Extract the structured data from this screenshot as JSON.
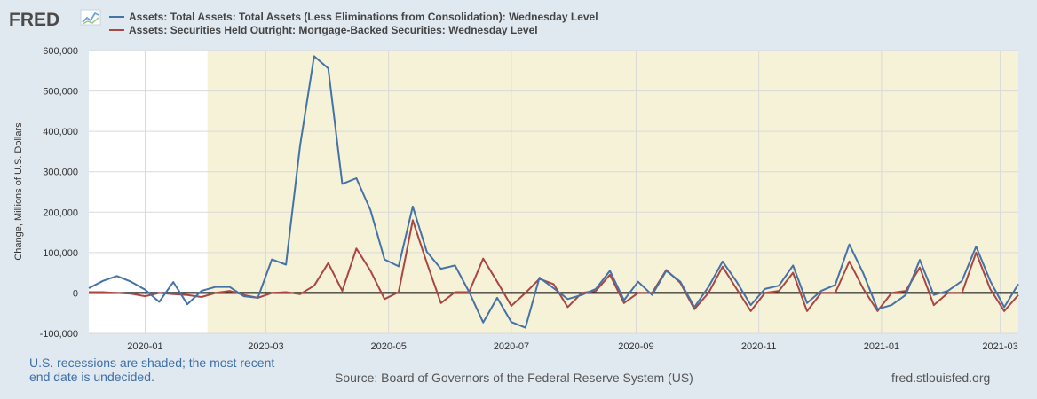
{
  "header": {
    "logo_text": "FRED",
    "logo_icon": "fred-chart-icon"
  },
  "chart_data": {
    "type": "line",
    "ylabel": "Change, Millions of U.S. Dollars",
    "ylim": [
      -100000,
      600000
    ],
    "y_ticks": [
      -100000,
      0,
      100000,
      200000,
      300000,
      400000,
      500000,
      600000
    ],
    "y_tick_labels": [
      "-100,000",
      "0",
      "100,000",
      "200,000",
      "300,000",
      "400,000",
      "500,000",
      "600,000"
    ],
    "x_range": [
      "2019-12-04",
      "2021-03-10"
    ],
    "x_ticks": [
      "2020-01-01",
      "2020-03-01",
      "2020-05-01",
      "2020-07-01",
      "2020-09-01",
      "2020-11-01",
      "2021-01-01",
      "2021-03-01"
    ],
    "x_tick_labels": [
      "2020-01",
      "2020-03",
      "2020-05",
      "2020-07",
      "2020-09",
      "2020-11",
      "2021-01",
      "2021-03"
    ],
    "start_date": "2019-12-04",
    "recession": {
      "start": "2020-02-01",
      "end": "2021-03-10"
    },
    "zero_line": true,
    "grid": true,
    "legend_position": "top",
    "series": [
      {
        "name": "Assets: Total Assets: Total Assets (Less Eliminations from Consolidation): Wednesday Level",
        "color": "#4572a7",
        "values": [
          12000,
          30000,
          42000,
          28000,
          8000,
          -22000,
          27000,
          -28000,
          5000,
          15000,
          15000,
          -8000,
          -12000,
          83000,
          70000,
          365000,
          586000,
          556000,
          270000,
          284000,
          205000,
          83000,
          66000,
          214000,
          102000,
          60000,
          68000,
          3000,
          -73000,
          -12000,
          -72000,
          -86000,
          38000,
          12000,
          -15000,
          -5000,
          10000,
          55000,
          -18000,
          28000,
          -5000,
          55000,
          28000,
          -35000,
          15000,
          78000,
          28000,
          -30000,
          10000,
          18000,
          68000,
          -25000,
          5000,
          20000,
          120000,
          48000,
          -40000,
          -30000,
          -5000,
          82000,
          -5000,
          5000,
          30000,
          115000,
          30000,
          -35000,
          22000
        ]
      },
      {
        "name": "Assets: Securities Held Outright: Mortgage-Backed Securities: Wednesday Level",
        "color": "#aa4643",
        "values": [
          2000,
          2000,
          0,
          -2000,
          -8000,
          0,
          -3000,
          -5000,
          -10000,
          0,
          5000,
          -5000,
          -12000,
          0,
          2000,
          -3000,
          18000,
          74000,
          5000,
          110000,
          55000,
          -15000,
          2000,
          180000,
          75000,
          -25000,
          2000,
          2000,
          85000,
          28000,
          -32000,
          0,
          35000,
          22000,
          -35000,
          0,
          5000,
          45000,
          -25000,
          0,
          0,
          57000,
          25000,
          -40000,
          0,
          65000,
          10000,
          -45000,
          0,
          5000,
          50000,
          -45000,
          0,
          0,
          78000,
          10000,
          -45000,
          0,
          5000,
          63000,
          -30000,
          0,
          0,
          100000,
          10000,
          -45000,
          -5000
        ]
      }
    ]
  },
  "footer": {
    "note": "U.S. recessions are shaded; the most recent end date is undecided.",
    "source": "Source: Board of Governors of the Federal Reserve System (US)",
    "site": "fred.stlouisfed.org"
  }
}
